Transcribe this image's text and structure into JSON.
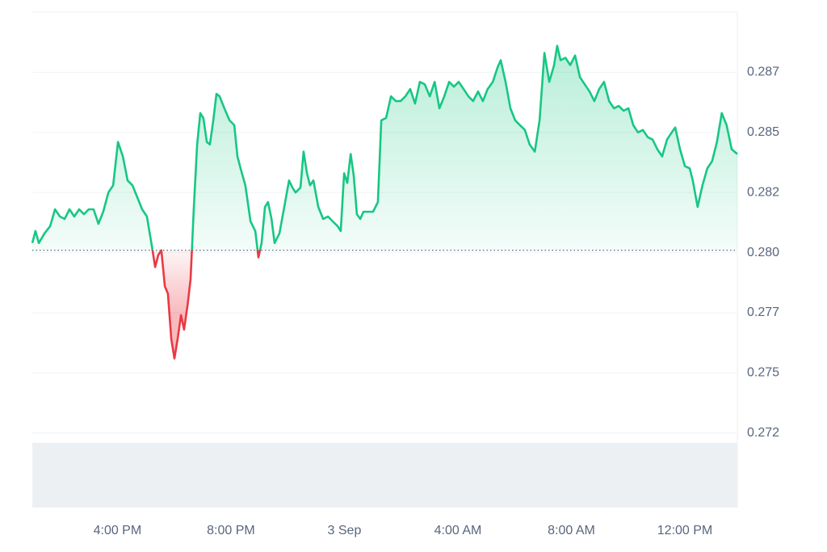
{
  "chart_data": {
    "type": "line",
    "x": [
      13.0,
      13.11,
      13.23,
      13.43,
      13.63,
      13.8,
      13.97,
      14.14,
      14.31,
      14.48,
      14.65,
      14.82,
      14.99,
      15.16,
      15.33,
      15.5,
      15.68,
      15.85,
      16.02,
      16.19,
      16.36,
      16.53,
      16.7,
      16.87,
      17.04,
      17.21,
      17.33,
      17.44,
      17.55,
      17.67,
      17.78,
      17.9,
      18.01,
      18.12,
      18.24,
      18.35,
      18.47,
      18.58,
      18.69,
      18.81,
      18.92,
      19.03,
      19.15,
      19.26,
      19.38,
      19.49,
      19.6,
      19.77,
      19.95,
      20.12,
      20.23,
      20.34,
      20.51,
      20.69,
      20.86,
      20.97,
      21.08,
      21.2,
      21.31,
      21.43,
      21.54,
      21.71,
      21.88,
      22.05,
      22.17,
      22.28,
      22.45,
      22.56,
      22.68,
      22.79,
      22.91,
      23.08,
      23.25,
      23.42,
      23.59,
      23.76,
      23.87,
      23.99,
      24.1,
      24.22,
      24.33,
      24.44,
      24.56,
      24.67,
      24.84,
      25.01,
      25.18,
      25.3,
      25.47,
      25.64,
      25.81,
      25.98,
      26.15,
      26.32,
      26.49,
      26.66,
      26.83,
      27.01,
      27.18,
      27.35,
      27.52,
      27.69,
      27.86,
      28.03,
      28.2,
      28.37,
      28.54,
      28.71,
      28.88,
      29.05,
      29.23,
      29.4,
      29.51,
      29.68,
      29.85,
      30.02,
      30.19,
      30.36,
      30.53,
      30.71,
      30.88,
      31.05,
      31.22,
      31.39,
      31.5,
      31.62,
      31.79,
      31.96,
      32.13,
      32.3,
      32.47,
      32.64,
      32.81,
      32.98,
      33.15,
      33.33,
      33.5,
      33.67,
      33.84,
      34.01,
      34.18,
      34.35,
      34.52,
      34.69,
      34.86,
      35.03,
      35.2,
      35.37,
      35.54,
      35.66,
      35.83,
      36.0,
      36.17,
      36.28,
      36.45,
      36.62,
      36.79,
      36.96,
      37.13,
      37.3,
      37.47,
      37.65,
      37.85
    ],
    "values": [
      0.2804,
      0.2809,
      0.2804,
      0.2808,
      0.2811,
      0.2818,
      0.2815,
      0.2814,
      0.2818,
      0.2815,
      0.2818,
      0.2816,
      0.2818,
      0.2818,
      0.2812,
      0.2817,
      0.2825,
      0.2828,
      0.2846,
      0.284,
      0.283,
      0.2828,
      0.2823,
      0.2818,
      0.2815,
      0.2803,
      0.2794,
      0.2799,
      0.2801,
      0.2786,
      0.2783,
      0.2764,
      0.2756,
      0.2764,
      0.2774,
      0.2768,
      0.2778,
      0.2789,
      0.2818,
      0.2845,
      0.2858,
      0.2856,
      0.2846,
      0.2845,
      0.2855,
      0.2866,
      0.2865,
      0.286,
      0.2855,
      0.2853,
      0.284,
      0.2835,
      0.2828,
      0.2813,
      0.2809,
      0.2798,
      0.2804,
      0.2819,
      0.2821,
      0.2814,
      0.2804,
      0.2808,
      0.2819,
      0.283,
      0.2827,
      0.2825,
      0.2827,
      0.2842,
      0.2833,
      0.2828,
      0.283,
      0.2819,
      0.2814,
      0.2815,
      0.2813,
      0.2811,
      0.2809,
      0.2833,
      0.2829,
      0.2841,
      0.2832,
      0.2816,
      0.2814,
      0.2817,
      0.2817,
      0.2817,
      0.2821,
      0.2855,
      0.2856,
      0.2865,
      0.2863,
      0.2863,
      0.2865,
      0.2868,
      0.2862,
      0.2871,
      0.287,
      0.2865,
      0.2871,
      0.286,
      0.2865,
      0.2871,
      0.2869,
      0.2871,
      0.2868,
      0.2865,
      0.2863,
      0.2867,
      0.2863,
      0.2868,
      0.2871,
      0.2877,
      0.288,
      0.2871,
      0.286,
      0.2855,
      0.2853,
      0.2851,
      0.2845,
      0.2842,
      0.2855,
      0.2883,
      0.2871,
      0.2878,
      0.2886,
      0.288,
      0.2881,
      0.2878,
      0.2882,
      0.2873,
      0.287,
      0.2867,
      0.2863,
      0.2868,
      0.2871,
      0.2863,
      0.286,
      0.2861,
      0.2859,
      0.286,
      0.2853,
      0.285,
      0.2851,
      0.2848,
      0.2847,
      0.2843,
      0.284,
      0.2847,
      0.285,
      0.2852,
      0.2843,
      0.2836,
      0.2835,
      0.283,
      0.2819,
      0.2828,
      0.2835,
      0.2838,
      0.2846,
      0.2858,
      0.2853,
      0.2843,
      0.2841
    ],
    "baseline": 0.2801,
    "color_above": "#16c784",
    "color_below": "#ea3943",
    "xlim": [
      13,
      37.85
    ],
    "ylim": [
      0.2694,
      0.29
    ],
    "xticks": [
      {
        "value": 16,
        "label": "4:00 PM"
      },
      {
        "value": 20,
        "label": "8:00 PM"
      },
      {
        "value": 24,
        "label": "3 Sep"
      },
      {
        "value": 28,
        "label": "4:00 AM"
      },
      {
        "value": 32,
        "label": "8:00 AM"
      },
      {
        "value": 36,
        "label": "12:00 PM"
      }
    ],
    "yticks": [
      {
        "value": 0.2875,
        "label": "0.287"
      },
      {
        "value": 0.285,
        "label": "0.285"
      },
      {
        "value": 0.2825,
        "label": "0.282"
      },
      {
        "value": 0.28,
        "label": "0.280"
      },
      {
        "value": 0.2775,
        "label": "0.277"
      },
      {
        "value": 0.275,
        "label": "0.275"
      },
      {
        "value": 0.2725,
        "label": "0.272"
      }
    ],
    "grid": true
  }
}
